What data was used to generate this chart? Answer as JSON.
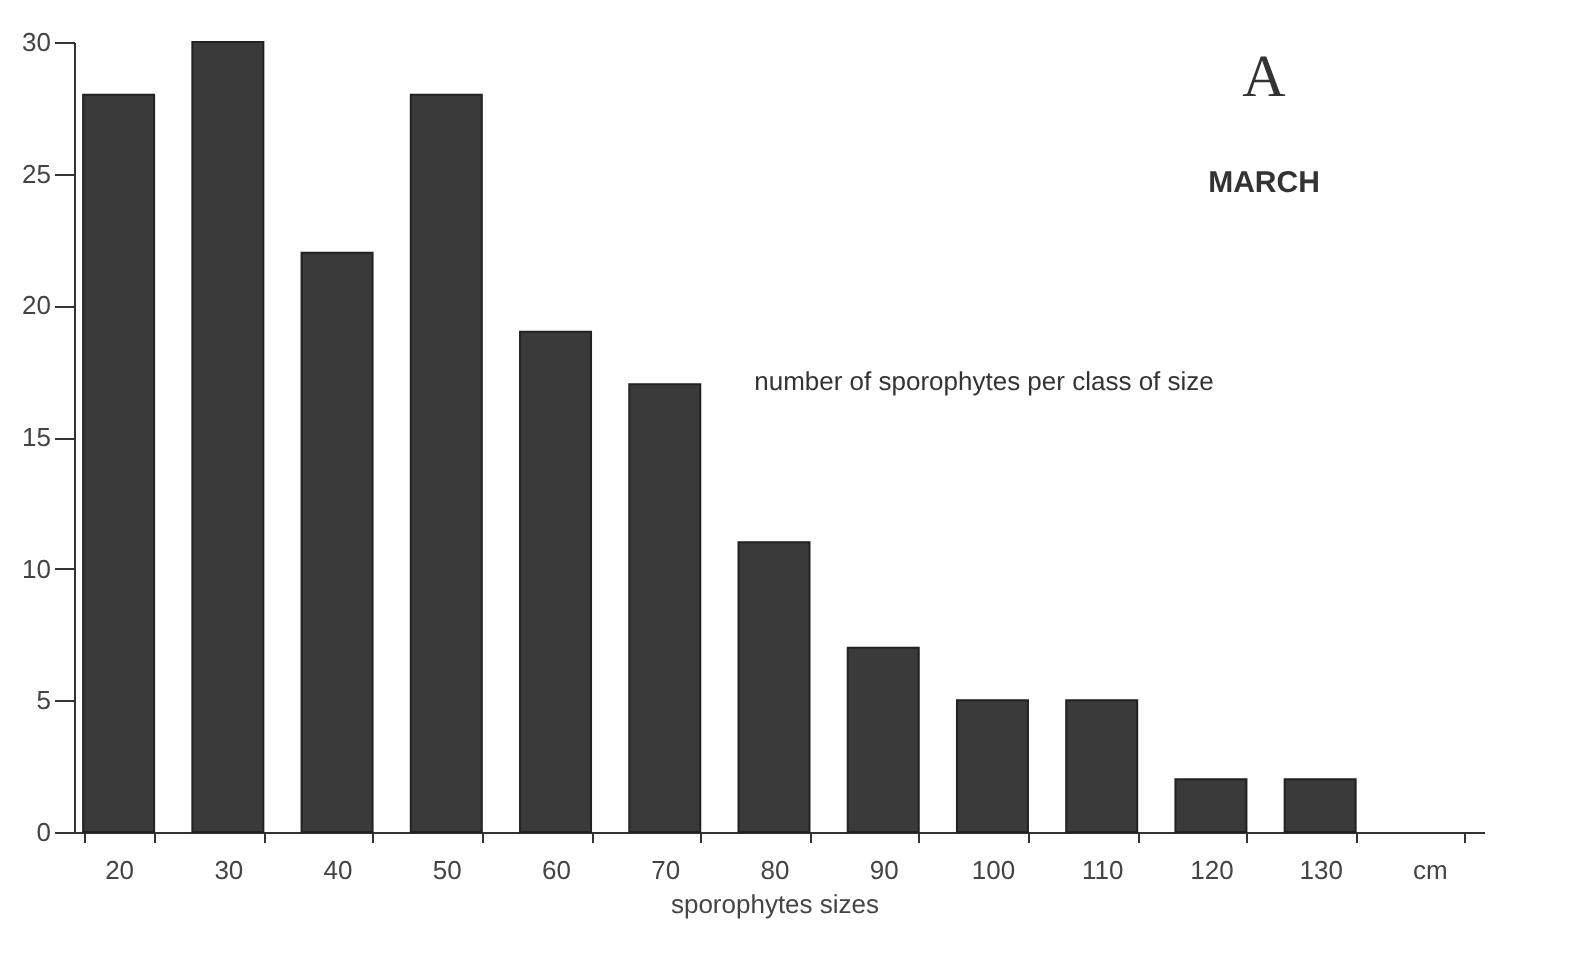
{
  "chart_data": {
    "type": "bar",
    "xlabel": "sporophytes sizes",
    "categories": [
      "20",
      "30",
      "40",
      "50",
      "60",
      "70",
      "80",
      "90",
      "100",
      "110",
      "120",
      "130",
      "cm"
    ],
    "values": [
      28,
      30,
      22,
      28,
      19,
      17,
      11,
      7,
      5,
      5,
      2,
      2,
      null
    ],
    "color": "#3a3a3a",
    "ylim": [
      0,
      30
    ],
    "yticks": [
      0,
      5,
      10,
      15,
      20,
      25,
      30
    ],
    "grid": false,
    "annotations": [
      "A",
      "MARCH",
      "number of sporophytes per class of size"
    ]
  }
}
